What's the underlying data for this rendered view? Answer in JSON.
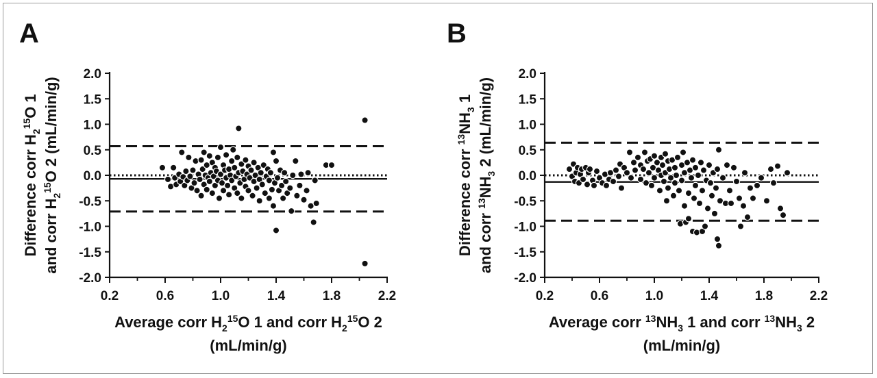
{
  "chart_data": [
    {
      "panel_label": "A",
      "type": "scatter",
      "plot_kind": "Bland-Altman",
      "xlabel_parts": [
        {
          "t": "Average corr H"
        },
        {
          "t": "2",
          "s": "sub"
        },
        {
          "t": "15",
          "s": "sup"
        },
        {
          "t": "O 1 and corr H"
        },
        {
          "t": "2",
          "s": "sub"
        },
        {
          "t": "15",
          "s": "sup"
        },
        {
          "t": "O 2"
        }
      ],
      "xlabel_line2": "(mL/min/g)",
      "ylabel_line1_parts": [
        {
          "t": "Difference corr H"
        },
        {
          "t": "2",
          "s": "sub"
        },
        {
          "t": "15",
          "s": "sup"
        },
        {
          "t": "O 1"
        }
      ],
      "ylabel_line2_parts": [
        {
          "t": "and corr H"
        },
        {
          "t": "2",
          "s": "sub"
        },
        {
          "t": "15",
          "s": "sup"
        },
        {
          "t": "O 2 (mL/min/g)"
        }
      ],
      "xlim": [
        0.2,
        2.2
      ],
      "ylim": [
        -2.0,
        2.0
      ],
      "x_ticks": [
        "0.2",
        "0.6",
        "1.0",
        "1.4",
        "1.8",
        "2.2"
      ],
      "y_ticks": [
        "2.0",
        "1.5",
        "1.0",
        "0.5",
        "0.0",
        "-0.5",
        "-1.0",
        "-1.5",
        "-2.0"
      ],
      "bias": -0.07,
      "limits_of_agreement": [
        0.57,
        -0.71
      ],
      "zero_line": 0.0,
      "points": [
        [
          0.58,
          0.15
        ],
        [
          0.62,
          -0.08
        ],
        [
          0.64,
          -0.22
        ],
        [
          0.66,
          0.15
        ],
        [
          0.67,
          -0.05
        ],
        [
          0.68,
          -0.18
        ],
        [
          0.7,
          0.02
        ],
        [
          0.71,
          -0.12
        ],
        [
          0.72,
          0.45
        ],
        [
          0.73,
          -0.03
        ],
        [
          0.74,
          -0.2
        ],
        [
          0.75,
          0.08
        ],
        [
          0.76,
          -0.1
        ],
        [
          0.77,
          0.35
        ],
        [
          0.78,
          -0.02
        ],
        [
          0.79,
          -0.25
        ],
        [
          0.8,
          0.1
        ],
        [
          0.81,
          -0.15
        ],
        [
          0.82,
          0.28
        ],
        [
          0.83,
          -0.3
        ],
        [
          0.84,
          0.02
        ],
        [
          0.85,
          -0.08
        ],
        [
          0.86,
          0.3
        ],
        [
          0.86,
          -0.4
        ],
        [
          0.87,
          0.12
        ],
        [
          0.88,
          -0.18
        ],
        [
          0.88,
          0.45
        ],
        [
          0.89,
          0.0
        ],
        [
          0.9,
          -0.28
        ],
        [
          0.9,
          0.2
        ],
        [
          0.91,
          -0.05
        ],
        [
          0.92,
          0.38
        ],
        [
          0.92,
          -0.12
        ],
        [
          0.93,
          0.05
        ],
        [
          0.94,
          -0.35
        ],
        [
          0.94,
          0.25
        ],
        [
          0.95,
          -0.02
        ],
        [
          0.96,
          0.15
        ],
        [
          0.96,
          -0.2
        ],
        [
          0.97,
          0.08
        ],
        [
          0.98,
          -0.1
        ],
        [
          0.98,
          0.35
        ],
        [
          0.99,
          -0.45
        ],
        [
          1.0,
          0.02
        ],
        [
          1.0,
          0.55
        ],
        [
          1.01,
          -0.15
        ],
        [
          1.02,
          0.2
        ],
        [
          1.02,
          -0.3
        ],
        [
          1.03,
          0.1
        ],
        [
          1.04,
          -0.05
        ],
        [
          1.04,
          0.4
        ],
        [
          1.05,
          -0.2
        ],
        [
          1.06,
          0.12
        ],
        [
          1.06,
          -0.38
        ],
        [
          1.07,
          0.0
        ],
        [
          1.08,
          0.28
        ],
        [
          1.08,
          -0.1
        ],
        [
          1.09,
          0.5
        ],
        [
          1.1,
          -0.25
        ],
        [
          1.1,
          0.15
        ],
        [
          1.11,
          -0.02
        ],
        [
          1.12,
          0.35
        ],
        [
          1.12,
          -0.35
        ],
        [
          1.13,
          0.92
        ],
        [
          1.13,
          0.05
        ],
        [
          1.14,
          -0.15
        ],
        [
          1.15,
          0.22
        ],
        [
          1.15,
          -0.45
        ],
        [
          1.16,
          0.08
        ],
        [
          1.17,
          -0.08
        ],
        [
          1.18,
          0.3
        ],
        [
          1.18,
          -0.22
        ],
        [
          1.19,
          0.02
        ],
        [
          1.2,
          -0.3
        ],
        [
          1.2,
          0.18
        ],
        [
          1.21,
          -0.05
        ],
        [
          1.22,
          0.1
        ],
        [
          1.23,
          -0.4
        ],
        [
          1.24,
          0.25
        ],
        [
          1.24,
          -0.12
        ],
        [
          1.25,
          0.0
        ],
        [
          1.26,
          -0.25
        ],
        [
          1.27,
          0.15
        ],
        [
          1.28,
          -0.08
        ],
        [
          1.28,
          -0.5
        ],
        [
          1.29,
          0.05
        ],
        [
          1.3,
          -0.18
        ],
        [
          1.31,
          0.2
        ],
        [
          1.32,
          -0.35
        ],
        [
          1.33,
          -0.02
        ],
        [
          1.34,
          0.12
        ],
        [
          1.35,
          -0.45
        ],
        [
          1.35,
          -0.1
        ],
        [
          1.36,
          0.05
        ],
        [
          1.37,
          -0.28
        ],
        [
          1.38,
          0.45
        ],
        [
          1.38,
          -0.6
        ],
        [
          1.39,
          -0.15
        ],
        [
          1.4,
          0.28
        ],
        [
          1.4,
          -1.08
        ],
        [
          1.41,
          -0.05
        ],
        [
          1.42,
          -0.3
        ],
        [
          1.43,
          0.1
        ],
        [
          1.44,
          -0.2
        ],
        [
          1.45,
          -0.45
        ],
        [
          1.46,
          0.05
        ],
        [
          1.47,
          -0.12
        ],
        [
          1.48,
          -0.35
        ],
        [
          1.5,
          -0.25
        ],
        [
          1.51,
          -0.7
        ],
        [
          1.52,
          0.0
        ],
        [
          1.54,
          0.28
        ],
        [
          1.55,
          -0.4
        ],
        [
          1.57,
          -0.2
        ],
        [
          1.58,
          0.02
        ],
        [
          1.6,
          -0.48
        ],
        [
          1.62,
          -0.3
        ],
        [
          1.63,
          0.05
        ],
        [
          1.65,
          -0.6
        ],
        [
          1.67,
          -0.92
        ],
        [
          1.68,
          -0.1
        ],
        [
          1.69,
          -0.55
        ],
        [
          1.76,
          0.2
        ],
        [
          1.8,
          0.2
        ],
        [
          2.04,
          1.08
        ],
        [
          2.04,
          -1.73
        ]
      ]
    },
    {
      "panel_label": "B",
      "type": "scatter",
      "plot_kind": "Bland-Altman",
      "xlabel_parts": [
        {
          "t": "Average corr "
        },
        {
          "t": "13",
          "s": "sup"
        },
        {
          "t": "NH"
        },
        {
          "t": "3",
          "s": "sub"
        },
        {
          "t": " 1 and corr "
        },
        {
          "t": "13",
          "s": "sup"
        },
        {
          "t": "NH"
        },
        {
          "t": "3",
          "s": "sub"
        },
        {
          "t": " 2"
        }
      ],
      "xlabel_line2": "(mL/min/g)",
      "ylabel_line1_parts": [
        {
          "t": "Difference corr "
        },
        {
          "t": "13",
          "s": "sup"
        },
        {
          "t": "NH"
        },
        {
          "t": "3",
          "s": "sub"
        },
        {
          "t": " 1"
        }
      ],
      "ylabel_line2_parts": [
        {
          "t": "and corr "
        },
        {
          "t": "13",
          "s": "sup"
        },
        {
          "t": "NH"
        },
        {
          "t": "3",
          "s": "sub"
        },
        {
          "t": " 2 (mL/min/g)"
        }
      ],
      "xlim": [
        0.2,
        2.2
      ],
      "ylim": [
        -2.0,
        2.0
      ],
      "x_ticks": [
        "0.2",
        "0.6",
        "1.0",
        "1.4",
        "1.8",
        "2.2"
      ],
      "y_ticks": [
        "2.0",
        "1.5",
        "1.0",
        "0.5",
        "0.0",
        "-0.5",
        "-1.0",
        "-1.5",
        "-2.0"
      ],
      "bias": -0.13,
      "limits_of_agreement": [
        0.64,
        -0.89
      ],
      "zero_line": 0.0,
      "points": [
        [
          0.38,
          0.12
        ],
        [
          0.4,
          -0.02
        ],
        [
          0.41,
          0.22
        ],
        [
          0.42,
          -0.12
        ],
        [
          0.43,
          0.05
        ],
        [
          0.44,
          0.15
        ],
        [
          0.45,
          -0.15
        ],
        [
          0.46,
          0.02
        ],
        [
          0.47,
          0.12
        ],
        [
          0.48,
          -0.08
        ],
        [
          0.5,
          0.15
        ],
        [
          0.51,
          -0.18
        ],
        [
          0.52,
          0.05
        ],
        [
          0.53,
          0.12
        ],
        [
          0.55,
          -0.1
        ],
        [
          0.56,
          -0.2
        ],
        [
          0.58,
          0.08
        ],
        [
          0.6,
          -0.05
        ],
        [
          0.62,
          -0.15
        ],
        [
          0.64,
          0.02
        ],
        [
          0.65,
          -0.2
        ],
        [
          0.67,
          -0.08
        ],
        [
          0.68,
          0.05
        ],
        [
          0.7,
          -0.12
        ],
        [
          0.72,
          0.1
        ],
        [
          0.74,
          -0.02
        ],
        [
          0.75,
          0.22
        ],
        [
          0.76,
          -0.25
        ],
        [
          0.78,
          0.15
        ],
        [
          0.8,
          0.05
        ],
        [
          0.82,
          0.45
        ],
        [
          0.83,
          -0.05
        ],
        [
          0.85,
          0.25
        ],
        [
          0.86,
          0.1
        ],
        [
          0.88,
          0.35
        ],
        [
          0.9,
          -0.08
        ],
        [
          0.9,
          0.2
        ],
        [
          0.92,
          0.12
        ],
        [
          0.93,
          0.45
        ],
        [
          0.94,
          -0.15
        ],
        [
          0.95,
          0.28
        ],
        [
          0.96,
          0.05
        ],
        [
          0.97,
          0.32
        ],
        [
          0.98,
          -0.2
        ],
        [
          0.99,
          0.15
        ],
        [
          1.0,
          0.38
        ],
        [
          1.0,
          -0.05
        ],
        [
          1.02,
          0.25
        ],
        [
          1.03,
          0.1
        ],
        [
          1.04,
          -0.3
        ],
        [
          1.05,
          0.35
        ],
        [
          1.05,
          0.0
        ],
        [
          1.06,
          0.2
        ],
        [
          1.07,
          -0.12
        ],
        [
          1.08,
          0.42
        ],
        [
          1.08,
          0.05
        ],
        [
          1.09,
          -0.5
        ],
        [
          1.1,
          0.28
        ],
        [
          1.1,
          -0.25
        ],
        [
          1.11,
          0.12
        ],
        [
          1.12,
          -0.05
        ],
        [
          1.13,
          0.3
        ],
        [
          1.14,
          -0.4
        ],
        [
          1.15,
          0.15
        ],
        [
          1.15,
          -0.15
        ],
        [
          1.16,
          0.0
        ],
        [
          1.17,
          0.35
        ],
        [
          1.18,
          -0.3
        ],
        [
          1.19,
          -0.95
        ],
        [
          1.2,
          0.2
        ],
        [
          1.2,
          -0.1
        ],
        [
          1.21,
          0.45
        ],
        [
          1.22,
          -0.6
        ],
        [
          1.22,
          0.05
        ],
        [
          1.23,
          -0.92
        ],
        [
          1.24,
          0.25
        ],
        [
          1.25,
          -0.35
        ],
        [
          1.25,
          -0.85
        ],
        [
          1.26,
          0.1
        ],
        [
          1.27,
          -0.05
        ],
        [
          1.28,
          0.3
        ],
        [
          1.28,
          -1.1
        ],
        [
          1.29,
          -0.45
        ],
        [
          1.3,
          0.15
        ],
        [
          1.3,
          -0.2
        ],
        [
          1.31,
          -1.12
        ],
        [
          1.32,
          0.0
        ],
        [
          1.33,
          -0.55
        ],
        [
          1.34,
          0.25
        ],
        [
          1.35,
          -1.1
        ],
        [
          1.35,
          -0.3
        ],
        [
          1.36,
          0.1
        ],
        [
          1.37,
          -1.0
        ],
        [
          1.38,
          -0.1
        ],
        [
          1.39,
          -0.65
        ],
        [
          1.4,
          0.2
        ],
        [
          1.41,
          -0.15
        ],
        [
          1.42,
          -0.4
        ],
        [
          1.43,
          0.05
        ],
        [
          1.44,
          -0.75
        ],
        [
          1.45,
          -0.25
        ],
        [
          1.46,
          -1.25
        ],
        [
          1.46,
          0.12
        ],
        [
          1.47,
          0.5
        ],
        [
          1.47,
          -1.38
        ],
        [
          1.48,
          -0.5
        ],
        [
          1.5,
          -0.05
        ],
        [
          1.52,
          -0.55
        ],
        [
          1.53,
          0.2
        ],
        [
          1.55,
          -0.3
        ],
        [
          1.56,
          -0.55
        ],
        [
          1.58,
          0.15
        ],
        [
          1.6,
          -0.12
        ],
        [
          1.62,
          -0.45
        ],
        [
          1.63,
          -1.0
        ],
        [
          1.65,
          -0.6
        ],
        [
          1.66,
          0.05
        ],
        [
          1.68,
          -0.82
        ],
        [
          1.7,
          -0.25
        ],
        [
          1.72,
          -0.45
        ],
        [
          1.75,
          -0.2
        ],
        [
          1.78,
          -0.05
        ],
        [
          1.82,
          -0.5
        ],
        [
          1.85,
          0.12
        ],
        [
          1.87,
          -0.15
        ],
        [
          1.9,
          0.18
        ],
        [
          1.92,
          -0.65
        ],
        [
          1.94,
          -0.78
        ],
        [
          1.97,
          0.05
        ]
      ]
    }
  ]
}
